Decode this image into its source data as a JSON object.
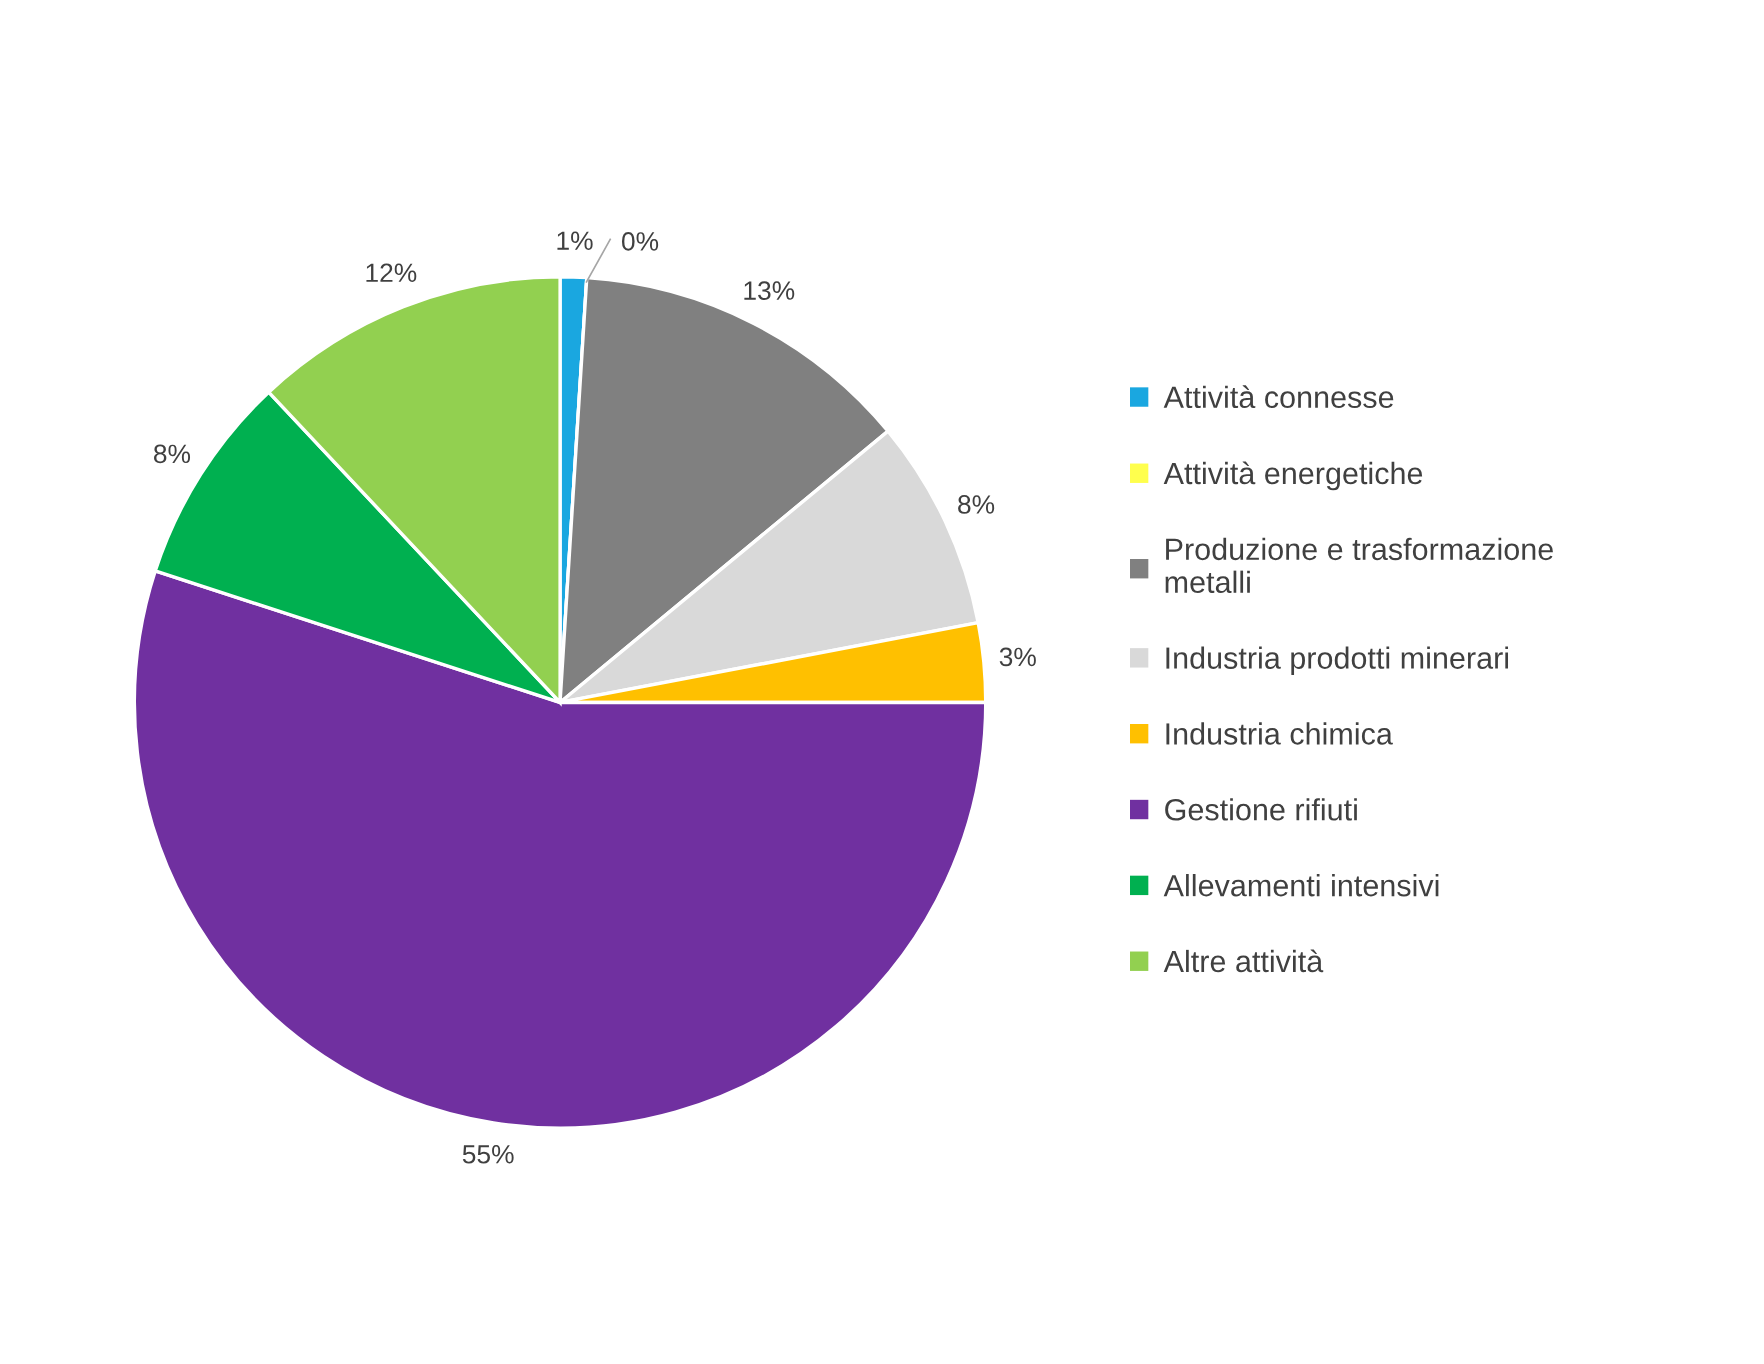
{
  "chart_data": {
    "type": "pie",
    "categories": [
      "Attività connesse",
      "Attività energetiche",
      "Produzione e trasformazione\nmetalli",
      "Industria prodotti minerari",
      "Industria chimica",
      "Gestione rifiuti",
      "Allevamenti intensivi",
      "Altre attività"
    ],
    "values": [
      1,
      0,
      13,
      8,
      3,
      55,
      8,
      12
    ],
    "colors": [
      "#1aa7e0",
      "#ffff4d",
      "#808080",
      "#d9d9d9",
      "#ffc000",
      "#7030a0",
      "#00b050",
      "#92d050"
    ],
    "value_labels": [
      "1%",
      "0%",
      "13%",
      "8%",
      "3%",
      "55%",
      "8%",
      "12%"
    ],
    "legend": "right"
  }
}
